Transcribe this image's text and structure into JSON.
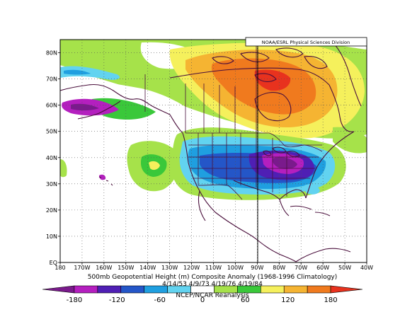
{
  "map": {
    "credit": "NOAA/ESRL Physical Sciences Division",
    "title_line1": "500mb Geopotential Height (m) Composite Anomaly (1968-1996 Climatology)",
    "title_line2": "4/14/53 4/9/73 4/19/76 4/19/84",
    "title_line3": "NCEP/NCAR Reanalysis",
    "lat_labels": [
      "80N",
      "70N",
      "60N",
      "50N",
      "40N",
      "30N",
      "20N",
      "10N",
      "EQ"
    ],
    "lon_labels": [
      "180",
      "170W",
      "160W",
      "150W",
      "140W",
      "130W",
      "120W",
      "110W",
      "100W",
      "90W",
      "80W",
      "70W",
      "60W",
      "50W",
      "40W"
    ],
    "lat_range": [
      0,
      85
    ],
    "lon_range": [
      -180,
      -40
    ],
    "grid": "dotted"
  },
  "colorbar": {
    "labels": [
      "-180",
      "-120",
      "-60",
      "0",
      "60",
      "120",
      "180"
    ],
    "colors": [
      "#7a1a8c",
      "#b41fbf",
      "#4f1fb4",
      "#2456c8",
      "#1f9fe0",
      "#62d3f0",
      "#ffffff",
      "#a6e24a",
      "#3ac83a",
      "#f5f05c",
      "#f5b432",
      "#f07a1e",
      "#e8321e"
    ]
  }
}
